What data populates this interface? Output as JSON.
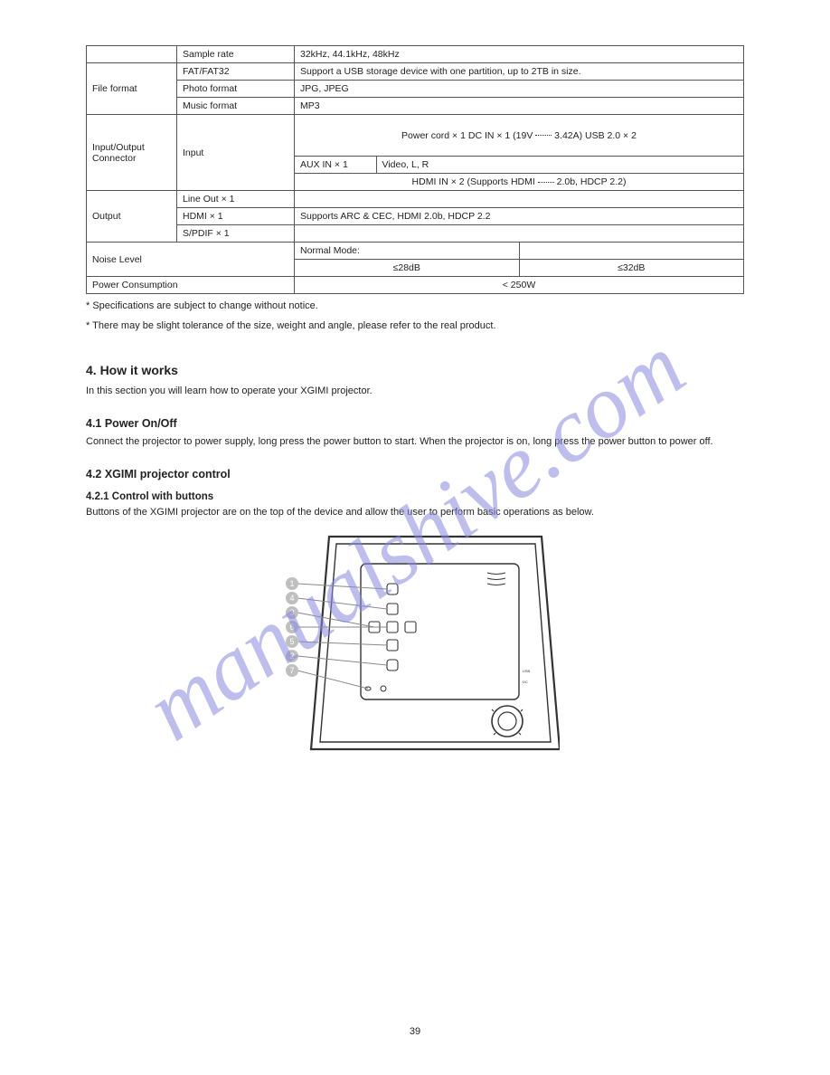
{
  "watermark": "manualshive.com",
  "page_number": "39",
  "table": {
    "rows": [
      {
        "c0": "",
        "c1": "Sample rate",
        "c2": "32kHz, 44.1kHz, 48kHz"
      },
      {
        "c0": "File format",
        "c1": "FAT/FAT32",
        "c2": "Support a USB storage device with one partition, up to 2TB in size."
      },
      {
        "c0": "",
        "c1": "Photo format",
        "c2": "JPG, JPEG"
      },
      {
        "c0": "",
        "c1": "Music format",
        "c2": "MP3"
      },
      {
        "c0": "Input/Output Connector",
        "c1": "Input",
        "c2": "Power cord × 1  DC IN × 1 (19V <span class=\"dotline\"></span> 3.42A)  USB 2.0 × 2"
      },
      {
        "c0": "",
        "c1": "",
        "c2a": "AUX IN × 1",
        "c2b": "Video, L, R"
      },
      {
        "c0": "",
        "c1": "",
        "c2": "HDMI IN × 2 (Supports HDMI <span class=\"dotline\"></span> 2.0b, HDCP 2.2)"
      },
      {
        "c0": "Output",
        "c1": "Line Out × 1",
        "c2": ""
      },
      {
        "c0": "",
        "c1": "HDMI × 1",
        "c2": "Supports ARC & CEC, HDMI 2.0b, HDCP 2.2"
      },
      {
        "c0": "",
        "c1": "S/PDIF × 1",
        "c2": ""
      },
      {
        "c0": "Noise Level",
        "c1": "",
        "c2a": "≤28dB",
        "c2b": "≤32dB",
        "c1a": "Normal Mode:"
      },
      {
        "c0": "Power Consumption",
        "c1": "",
        "c2": "< 250W"
      }
    ],
    "col_widths": [
      "100px",
      "130px",
      "auto"
    ]
  },
  "footnote1": "* Specifications are subject to change without notice.",
  "footnote2": "* There may be slight tolerance of the size, weight and angle, please refer to the real product.",
  "sections": {
    "h1": "4. How it works",
    "h1sub": "In this section you will learn how to operate your XGIMI projector.",
    "h2": "4.1 Power On/Off",
    "body1": "Connect the projector to power supply, long press the power button to start. When the projector is on, long press the power button to power off.",
    "h3a": "4.2 XGIMI projector control",
    "h3a_t": "4.2.1 Control with buttons",
    "body2": "Buttons of the XGIMI projector are on the top of the device and allow the user to perform basic operations as below."
  },
  "diagram": {
    "markers": [
      "1",
      "4",
      "3",
      "6",
      "5",
      "2",
      "7"
    ],
    "marker_fill": "#bfbfbf",
    "marker_text": "#ffffff",
    "outline": "#333333"
  }
}
